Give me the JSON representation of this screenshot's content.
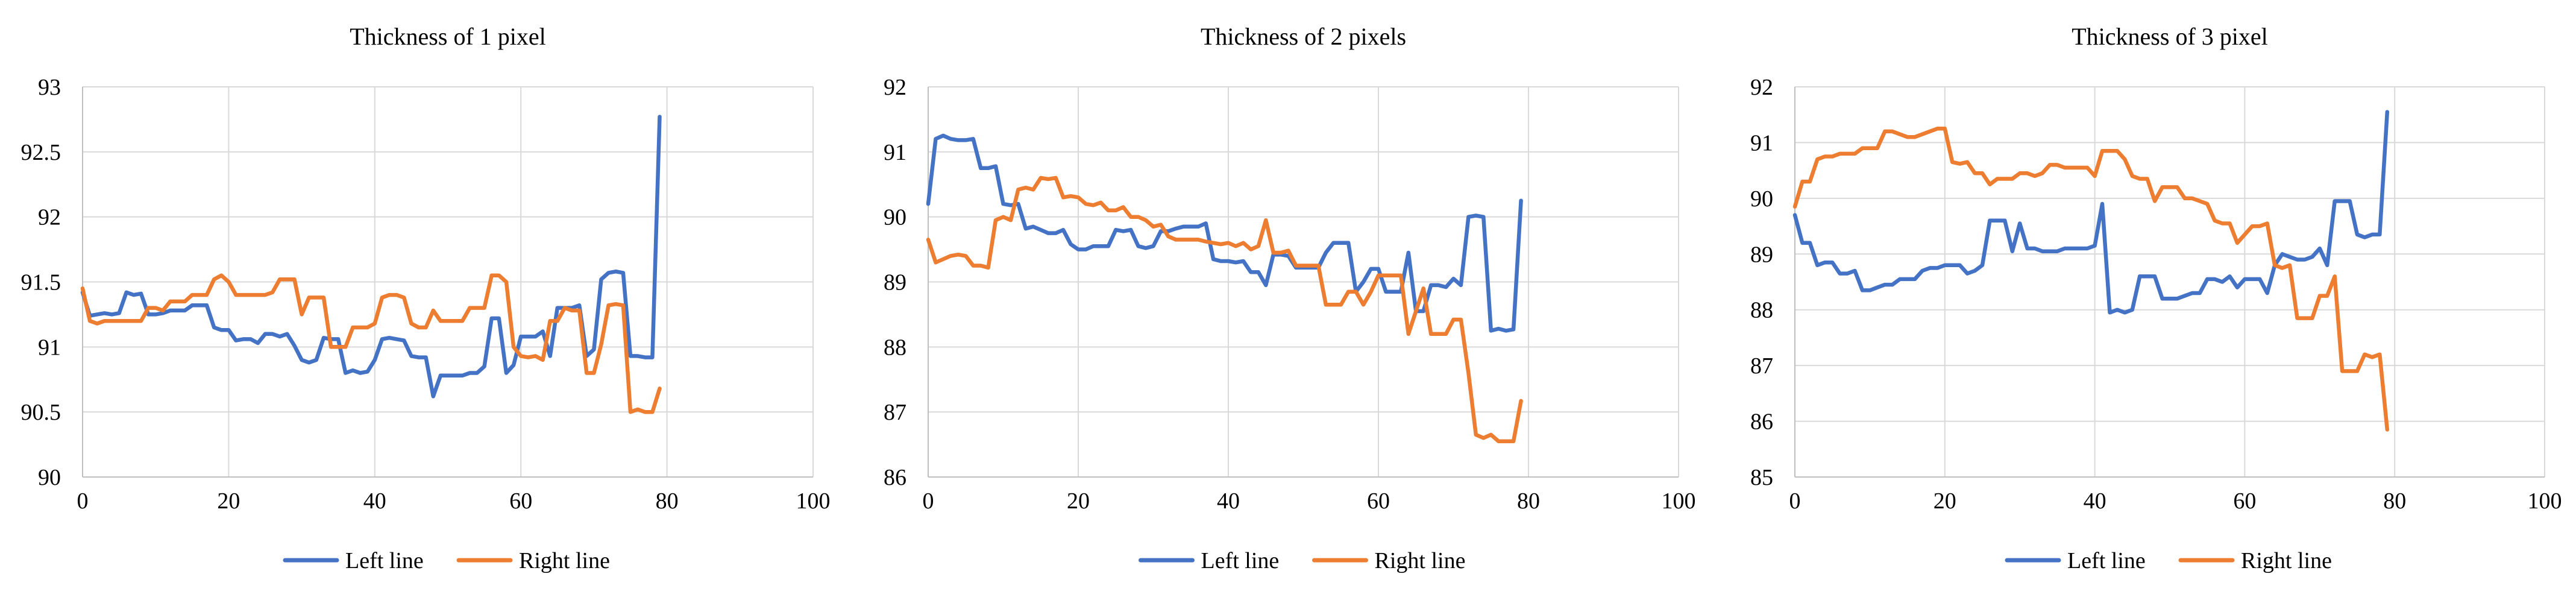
{
  "chart_data": [
    {
      "type": "line",
      "title": "Thickness of 1 pixel",
      "xlabel": "",
      "ylabel": "",
      "xlim": [
        0,
        100
      ],
      "ylim": [
        90,
        93
      ],
      "xticks": [
        0,
        20,
        40,
        60,
        80,
        100
      ],
      "yticks": [
        90,
        90.5,
        91,
        91.5,
        92,
        92.5,
        93
      ],
      "ytick_labels": [
        "90",
        "90.5",
        "91",
        "91.5",
        "92",
        "92.5",
        "93"
      ],
      "grid": "vertical",
      "legend": "bottom",
      "x": [
        0,
        1,
        2,
        3,
        4,
        5,
        6,
        7,
        8,
        9,
        10,
        11,
        12,
        13,
        14,
        15,
        16,
        17,
        18,
        19,
        20,
        21,
        22,
        23,
        24,
        25,
        26,
        27,
        28,
        29,
        30,
        31,
        32,
        33,
        34,
        35,
        36,
        37,
        38,
        39,
        40,
        41,
        42,
        43,
        44,
        45,
        46,
        47,
        48,
        49,
        50,
        51,
        52,
        53,
        54,
        55,
        56,
        57,
        58,
        59,
        60,
        61,
        62,
        63,
        64,
        65,
        66,
        67,
        68,
        69,
        70,
        71,
        72,
        73,
        74,
        75,
        76,
        77,
        78,
        79
      ],
      "series": [
        {
          "name": "Left line",
          "color": "#4472C4",
          "values": [
            91.42,
            91.24,
            91.25,
            91.26,
            91.25,
            91.26,
            91.42,
            91.4,
            91.41,
            91.25,
            91.25,
            91.26,
            91.28,
            91.28,
            91.28,
            91.32,
            91.32,
            91.32,
            91.15,
            91.13,
            91.13,
            91.05,
            91.06,
            91.06,
            91.03,
            91.1,
            91.1,
            91.08,
            91.1,
            91.01,
            90.9,
            90.88,
            90.9,
            91.07,
            91.06,
            91.06,
            90.8,
            90.82,
            90.8,
            90.81,
            90.9,
            91.06,
            91.07,
            91.06,
            91.05,
            90.93,
            90.92,
            90.92,
            90.62,
            90.78,
            90.78,
            90.78,
            90.78,
            90.8,
            90.8,
            90.85,
            91.22,
            91.22,
            90.8,
            90.86,
            91.08,
            91.08,
            91.08,
            91.12,
            90.93,
            91.3,
            91.3,
            91.3,
            91.32,
            90.93,
            90.98,
            91.52,
            91.57,
            91.58,
            91.57,
            90.93,
            90.93,
            90.92,
            90.92,
            92.77
          ]
        },
        {
          "name": "Right line",
          "color": "#ED7D31",
          "values": [
            91.45,
            91.2,
            91.18,
            91.2,
            91.2,
            91.2,
            91.2,
            91.2,
            91.2,
            91.3,
            91.3,
            91.28,
            91.35,
            91.35,
            91.35,
            91.4,
            91.4,
            91.4,
            91.52,
            91.55,
            91.5,
            91.4,
            91.4,
            91.4,
            91.4,
            91.4,
            91.42,
            91.52,
            91.52,
            91.52,
            91.25,
            91.38,
            91.38,
            91.38,
            91.0,
            91.0,
            91.0,
            91.15,
            91.15,
            91.15,
            91.18,
            91.38,
            91.4,
            91.4,
            91.38,
            91.18,
            91.15,
            91.15,
            91.28,
            91.2,
            91.2,
            91.2,
            91.2,
            91.3,
            91.3,
            91.3,
            91.55,
            91.55,
            91.5,
            91.0,
            90.93,
            90.92,
            90.93,
            90.9,
            91.2,
            91.2,
            91.3,
            91.28,
            91.28,
            90.8,
            90.8,
            91.02,
            91.32,
            91.33,
            91.32,
            90.5,
            90.52,
            90.5,
            90.5,
            90.68
          ]
        }
      ]
    },
    {
      "type": "line",
      "title": "Thickness of 2 pixels",
      "xlabel": "",
      "ylabel": "",
      "xlim": [
        0,
        100
      ],
      "ylim": [
        86,
        92
      ],
      "xticks": [
        0,
        20,
        40,
        60,
        80,
        100
      ],
      "yticks": [
        86,
        87,
        88,
        89,
        90,
        91,
        92
      ],
      "ytick_labels": [
        "86",
        "87",
        "88",
        "89",
        "90",
        "91",
        "92"
      ],
      "grid": "both",
      "legend": "bottom",
      "x": [
        0,
        1,
        2,
        3,
        4,
        5,
        6,
        7,
        8,
        9,
        10,
        11,
        12,
        13,
        14,
        15,
        16,
        17,
        18,
        19,
        20,
        21,
        22,
        23,
        24,
        25,
        26,
        27,
        28,
        29,
        30,
        31,
        32,
        33,
        34,
        35,
        36,
        37,
        38,
        39,
        40,
        41,
        42,
        43,
        44,
        45,
        46,
        47,
        48,
        49,
        50,
        51,
        52,
        53,
        54,
        55,
        56,
        57,
        58,
        59,
        60,
        61,
        62,
        63,
        64,
        65,
        66,
        67,
        68,
        69,
        70,
        71,
        72,
        73,
        74,
        75,
        76,
        77,
        78,
        79
      ],
      "series": [
        {
          "name": "Left line",
          "color": "#4472C4",
          "values": [
            90.2,
            91.2,
            91.25,
            91.2,
            91.18,
            91.18,
            91.2,
            90.75,
            90.75,
            90.78,
            90.2,
            90.18,
            90.2,
            89.82,
            89.85,
            89.8,
            89.75,
            89.75,
            89.8,
            89.58,
            89.5,
            89.5,
            89.55,
            89.55,
            89.55,
            89.8,
            89.78,
            89.8,
            89.55,
            89.52,
            89.55,
            89.78,
            89.78,
            89.82,
            89.85,
            89.85,
            89.85,
            89.9,
            89.35,
            89.32,
            89.32,
            89.3,
            89.32,
            89.15,
            89.15,
            88.95,
            89.42,
            89.42,
            89.4,
            89.22,
            89.22,
            89.22,
            89.22,
            89.45,
            89.6,
            89.6,
            89.6,
            88.85,
            89.0,
            89.2,
            89.2,
            88.85,
            88.85,
            88.85,
            89.45,
            88.55,
            88.55,
            88.95,
            88.95,
            88.92,
            89.05,
            88.95,
            90.0,
            90.02,
            90.0,
            88.25,
            88.28,
            88.25,
            88.27,
            90.25
          ]
        },
        {
          "name": "Right line",
          "color": "#ED7D31",
          "values": [
            89.65,
            89.3,
            89.35,
            89.4,
            89.42,
            89.4,
            89.25,
            89.25,
            89.22,
            89.95,
            90.0,
            89.95,
            90.42,
            90.45,
            90.42,
            90.6,
            90.58,
            90.6,
            90.3,
            90.32,
            90.3,
            90.2,
            90.18,
            90.22,
            90.1,
            90.1,
            90.15,
            90.0,
            90.0,
            89.95,
            89.85,
            89.88,
            89.7,
            89.65,
            89.65,
            89.65,
            89.65,
            89.62,
            89.6,
            89.58,
            89.6,
            89.55,
            89.6,
            89.5,
            89.55,
            89.95,
            89.45,
            89.45,
            89.48,
            89.25,
            89.25,
            89.25,
            89.25,
            88.65,
            88.65,
            88.65,
            88.85,
            88.85,
            88.65,
            88.85,
            89.1,
            89.1,
            89.1,
            89.1,
            88.2,
            88.55,
            88.9,
            88.2,
            88.2,
            88.2,
            88.42,
            88.42,
            87.6,
            86.65,
            86.6,
            86.65,
            86.55,
            86.55,
            86.55,
            87.17
          ]
        }
      ]
    },
    {
      "type": "line",
      "title": "Thickness of 3 pixel",
      "xlabel": "",
      "ylabel": "",
      "xlim": [
        0,
        100
      ],
      "ylim": [
        85,
        92
      ],
      "xticks": [
        0,
        20,
        40,
        60,
        80,
        100
      ],
      "yticks": [
        85,
        86,
        87,
        88,
        89,
        90,
        91,
        92
      ],
      "ytick_labels": [
        "85",
        "86",
        "87",
        "88",
        "89",
        "90",
        "91",
        "92"
      ],
      "grid": "both",
      "legend": "bottom",
      "x": [
        0,
        1,
        2,
        3,
        4,
        5,
        6,
        7,
        8,
        9,
        10,
        11,
        12,
        13,
        14,
        15,
        16,
        17,
        18,
        19,
        20,
        21,
        22,
        23,
        24,
        25,
        26,
        27,
        28,
        29,
        30,
        31,
        32,
        33,
        34,
        35,
        36,
        37,
        38,
        39,
        40,
        41,
        42,
        43,
        44,
        45,
        46,
        47,
        48,
        49,
        50,
        51,
        52,
        53,
        54,
        55,
        56,
        57,
        58,
        59,
        60,
        61,
        62,
        63,
        64,
        65,
        66,
        67,
        68,
        69,
        70,
        71,
        72,
        73,
        74,
        75,
        76,
        77,
        78,
        79
      ],
      "series": [
        {
          "name": "Left line",
          "color": "#4472C4",
          "values": [
            89.7,
            89.2,
            89.2,
            88.8,
            88.85,
            88.85,
            88.65,
            88.65,
            88.7,
            88.35,
            88.35,
            88.4,
            88.45,
            88.45,
            88.55,
            88.55,
            88.55,
            88.7,
            88.75,
            88.75,
            88.8,
            88.8,
            88.8,
            88.65,
            88.7,
            88.8,
            89.6,
            89.6,
            89.6,
            89.05,
            89.55,
            89.1,
            89.1,
            89.05,
            89.05,
            89.05,
            89.1,
            89.1,
            89.1,
            89.1,
            89.15,
            89.9,
            87.95,
            88.0,
            87.95,
            88.0,
            88.6,
            88.6,
            88.6,
            88.2,
            88.2,
            88.2,
            88.25,
            88.3,
            88.3,
            88.55,
            88.55,
            88.5,
            88.6,
            88.4,
            88.55,
            88.55,
            88.55,
            88.3,
            88.8,
            89.0,
            88.95,
            88.9,
            88.9,
            88.95,
            89.1,
            88.8,
            89.95,
            89.95,
            89.95,
            89.35,
            89.3,
            89.35,
            89.35,
            91.55
          ]
        },
        {
          "name": "Right line",
          "color": "#ED7D31",
          "values": [
            89.85,
            90.3,
            90.3,
            90.7,
            90.75,
            90.75,
            90.8,
            90.8,
            90.8,
            90.9,
            90.9,
            90.9,
            91.2,
            91.2,
            91.15,
            91.1,
            91.1,
            91.15,
            91.2,
            91.25,
            91.25,
            90.65,
            90.62,
            90.65,
            90.45,
            90.45,
            90.25,
            90.35,
            90.35,
            90.35,
            90.45,
            90.45,
            90.4,
            90.45,
            90.6,
            90.6,
            90.55,
            90.55,
            90.55,
            90.55,
            90.4,
            90.85,
            90.85,
            90.85,
            90.7,
            90.4,
            90.35,
            90.35,
            89.95,
            90.2,
            90.2,
            90.2,
            90.0,
            90.0,
            89.95,
            89.9,
            89.6,
            89.55,
            89.55,
            89.2,
            89.35,
            89.5,
            89.5,
            89.55,
            88.8,
            88.75,
            88.8,
            87.85,
            87.85,
            87.85,
            88.25,
            88.25,
            88.6,
            86.9,
            86.9,
            86.9,
            87.2,
            87.15,
            87.2,
            85.85
          ]
        }
      ]
    }
  ]
}
